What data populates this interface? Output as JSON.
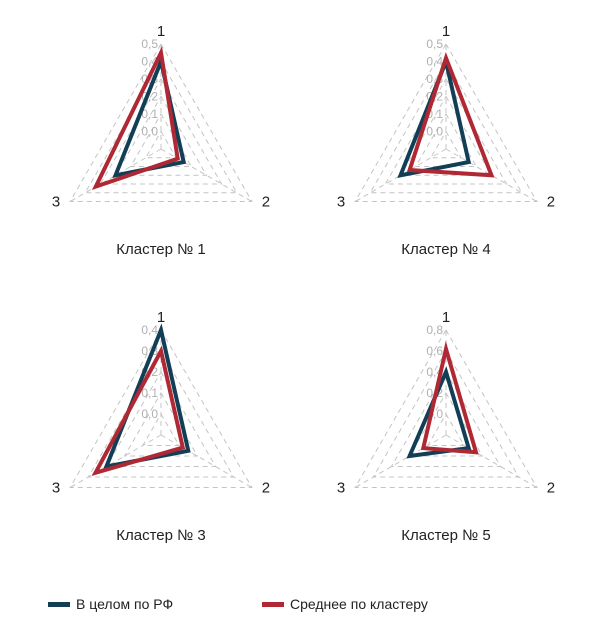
{
  "chart_data": [
    {
      "type": "radar",
      "title": "Кластер № 1",
      "axes": [
        "1",
        "2",
        "3"
      ],
      "scale": {
        "min": -0.1,
        "max": 0.5
      },
      "tick_labels": [
        "0,0",
        "0,1",
        "0,2",
        "0,3",
        "0,4",
        "0,5"
      ],
      "series": [
        {
          "name": "В целом по РФ",
          "values": [
            0.4,
            0.05,
            0.2
          ]
        },
        {
          "name": "Среднее по кластеру",
          "values": [
            0.45,
            0.01,
            0.33
          ]
        }
      ]
    },
    {
      "type": "radar",
      "title": "Кластер № 4",
      "axes": [
        "1",
        "2",
        "3"
      ],
      "scale": {
        "min": -0.1,
        "max": 0.5
      },
      "tick_labels": [
        "0,0",
        "0,1",
        "0,2",
        "0,3",
        "0,4",
        "0,5"
      ],
      "series": [
        {
          "name": "В целом по РФ",
          "values": [
            0.4,
            0.05,
            0.2
          ]
        },
        {
          "name": "Среднее по кластеру",
          "values": [
            0.42,
            0.2,
            0.14
          ]
        }
      ]
    },
    {
      "type": "radar",
      "title": "Кластер № 3",
      "axes": [
        "1",
        "2",
        "3"
      ],
      "scale": {
        "min": -0.1,
        "max": 0.4
      },
      "tick_labels": [
        "0,0",
        "0,1",
        "0,2",
        "0,3",
        "0,4"
      ],
      "series": [
        {
          "name": "В целом по РФ",
          "values": [
            0.4,
            0.05,
            0.2
          ]
        },
        {
          "name": "Среднее по кластеру",
          "values": [
            0.3,
            0.02,
            0.26
          ]
        }
      ]
    },
    {
      "type": "radar",
      "title": "Кластер № 5",
      "axes": [
        "1",
        "2",
        "3"
      ],
      "scale": {
        "min": -0.2,
        "max": 0.8
      },
      "tick_labels": [
        "0,0",
        "0,2",
        "0,4",
        "0,6",
        "0,8"
      ],
      "series": [
        {
          "name": "В целом по РФ",
          "values": [
            0.4,
            0.05,
            0.2
          ]
        },
        {
          "name": "Среднее по кластеру",
          "values": [
            0.62,
            0.13,
            0.05
          ]
        }
      ]
    }
  ],
  "legend": {
    "items": [
      {
        "label": "В целом по РФ",
        "color": "#123f55"
      },
      {
        "label": "Среднее по кластеру",
        "color": "#b02834"
      }
    ]
  },
  "colors": {
    "grid": "#c4c4c4",
    "tick_text": "#b0b0b0",
    "text": "#222222"
  }
}
